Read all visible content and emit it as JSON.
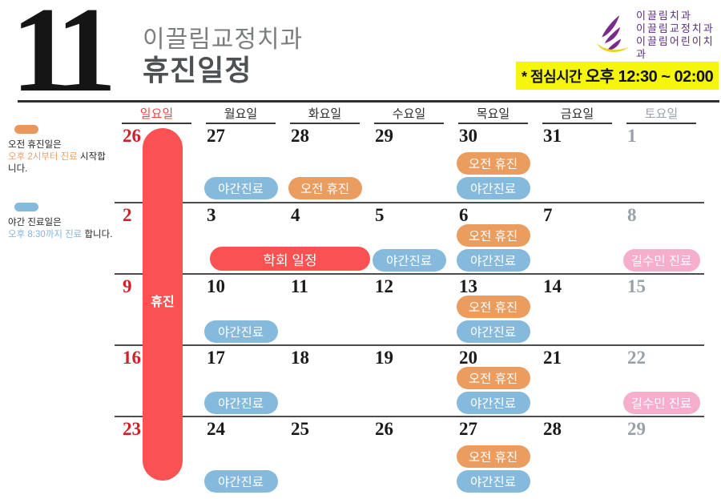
{
  "header": {
    "month_number": "11",
    "clinic_name": "이끌림교정치과",
    "title": "휴진일정",
    "logo_lines": [
      "이끌림치과",
      "이끌림교정치과",
      "이끌림어린이치과"
    ],
    "lunch_note_prefix": "* 점심시간 ",
    "lunch_note_time": "오후 12:30 ~ 02:00"
  },
  "legend": {
    "morning": {
      "line1": "오전 휴진일은",
      "highlight": "오후 2시부터 진료",
      "rest": " 시작합니다."
    },
    "night": {
      "line1": "야간 진료일은",
      "highlight": "오후 8:30까지 진료",
      "rest": " 합니다."
    }
  },
  "colors": {
    "holiday_red": "#fa5252",
    "morning_badge": "#eb9d60",
    "night_badge": "#85badd",
    "guest_badge": "#f5aecb",
    "event_badge": "#fa5252",
    "sunday_label": "#ef4545",
    "saturday_label": "#9aa2ab",
    "weekday_label": "#2b2b2b",
    "red_date": "#cd2127",
    "gray_date": "#98a0a8",
    "lunch_highlight": "#f6f60b",
    "logo_purple": "#5b2c85",
    "logo_yellow": "#e8d21d"
  },
  "calendar": {
    "sunday_banner": "휴진",
    "day_headers": [
      {
        "label": "일요일",
        "color": "#ef4545"
      },
      {
        "label": "월요일",
        "color": "#2b2b2b"
      },
      {
        "label": "화요일",
        "color": "#2b2b2b"
      },
      {
        "label": "수요일",
        "color": "#2b2b2b"
      },
      {
        "label": "목요일",
        "color": "#2b2b2b"
      },
      {
        "label": "금요일",
        "color": "#2b2b2b"
      },
      {
        "label": "토요일",
        "color": "#9aa2ab"
      }
    ],
    "weeks": [
      {
        "days": [
          {
            "date": "26",
            "color": "red",
            "badges": []
          },
          {
            "date": "27",
            "color": "black",
            "badges": [
              {
                "type": "night",
                "label": "야간진료"
              }
            ]
          },
          {
            "date": "28",
            "color": "black",
            "badges": [
              {
                "type": "morning",
                "label": "오전 휴진"
              }
            ]
          },
          {
            "date": "29",
            "color": "black",
            "badges": []
          },
          {
            "date": "30",
            "color": "black",
            "badges": [
              {
                "type": "morning",
                "label": "오전 휴진"
              },
              {
                "type": "night",
                "label": "야간진료"
              }
            ]
          },
          {
            "date": "31",
            "color": "black",
            "badges": []
          },
          {
            "date": "1",
            "color": "gray",
            "badges": []
          }
        ]
      },
      {
        "span_badge": {
          "label": "학회 일정"
        },
        "days": [
          {
            "date": "2",
            "color": "red",
            "badges": []
          },
          {
            "date": "3",
            "color": "black",
            "badges": []
          },
          {
            "date": "4",
            "color": "black",
            "badges": []
          },
          {
            "date": "5",
            "color": "black",
            "badges": [
              {
                "type": "night",
                "label": "야간진료"
              }
            ]
          },
          {
            "date": "6",
            "color": "black",
            "badges": [
              {
                "type": "morning",
                "label": "오전 휴진"
              },
              {
                "type": "night",
                "label": "야간진료"
              }
            ]
          },
          {
            "date": "7",
            "color": "black",
            "badges": []
          },
          {
            "date": "8",
            "color": "gray",
            "badges": [
              {
                "type": "guest",
                "label": "길수민 진료"
              }
            ]
          }
        ]
      },
      {
        "days": [
          {
            "date": "9",
            "color": "red",
            "badges": []
          },
          {
            "date": "10",
            "color": "black",
            "badges": [
              {
                "type": "night",
                "label": "야간진료"
              }
            ]
          },
          {
            "date": "11",
            "color": "black",
            "badges": []
          },
          {
            "date": "12",
            "color": "black",
            "badges": []
          },
          {
            "date": "13",
            "color": "black",
            "badges": [
              {
                "type": "morning",
                "label": "오전 휴진"
              },
              {
                "type": "night",
                "label": "야간진료"
              }
            ]
          },
          {
            "date": "14",
            "color": "black",
            "badges": []
          },
          {
            "date": "15",
            "color": "gray",
            "badges": []
          }
        ]
      },
      {
        "days": [
          {
            "date": "16",
            "color": "red",
            "badges": []
          },
          {
            "date": "17",
            "color": "black",
            "badges": [
              {
                "type": "night",
                "label": "야간진료"
              }
            ]
          },
          {
            "date": "18",
            "color": "black",
            "badges": []
          },
          {
            "date": "19",
            "color": "black",
            "badges": []
          },
          {
            "date": "20",
            "color": "black",
            "badges": [
              {
                "type": "morning",
                "label": "오전 휴진"
              },
              {
                "type": "night",
                "label": "야간진료"
              }
            ]
          },
          {
            "date": "21",
            "color": "black",
            "badges": []
          },
          {
            "date": "22",
            "color": "gray",
            "badges": [
              {
                "type": "guest",
                "label": "길수민 진료"
              }
            ]
          }
        ]
      },
      {
        "days": [
          {
            "date": "23",
            "color": "red",
            "badges": []
          },
          {
            "date": "24",
            "color": "black",
            "badges": [
              {
                "type": "night",
                "label": "야간진료"
              }
            ]
          },
          {
            "date": "25",
            "color": "black",
            "badges": []
          },
          {
            "date": "26",
            "color": "black",
            "badges": []
          },
          {
            "date": "27",
            "color": "black",
            "badges": [
              {
                "type": "morning",
                "label": "오전 휴진"
              },
              {
                "type": "night",
                "label": "야간진료"
              }
            ]
          },
          {
            "date": "28",
            "color": "black",
            "badges": []
          },
          {
            "date": "29",
            "color": "gray",
            "badges": []
          }
        ]
      }
    ]
  }
}
